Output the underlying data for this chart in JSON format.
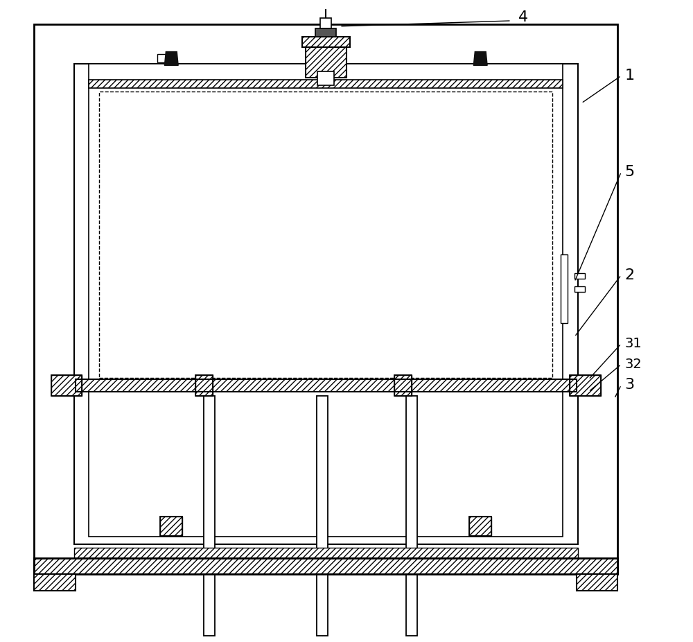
{
  "bg_color": "#ffffff",
  "line_color": "#000000",
  "fig_width": 10.0,
  "fig_height": 9.26,
  "label_fontsize": 16
}
